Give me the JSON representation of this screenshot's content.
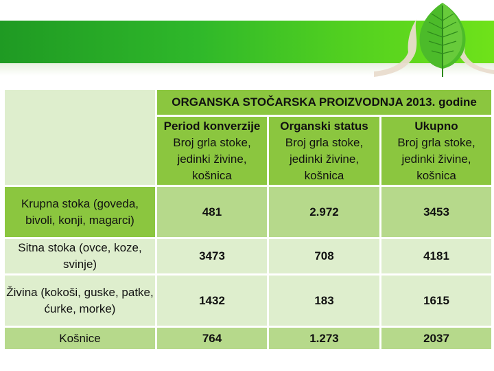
{
  "table": {
    "title": "ORGANSKA STOČARSKA PROIZVODNJA 2013. godine",
    "columns": [
      {
        "heading": "Period konverzije",
        "subheading": "Broj grla stoke, jedinki živine, košnica"
      },
      {
        "heading": "Organski status",
        "subheading": "Broj grla stoke, jedinki živine, košnica"
      },
      {
        "heading": "Ukupno",
        "subheading": "Broj grla stoke, jedinki živine, košnica"
      }
    ],
    "rows": [
      {
        "label": "Krupna stoka (goveda, bivoli, konji, magarci)",
        "values": [
          "481",
          "2.972",
          "3453"
        ]
      },
      {
        "label": "Sitna stoka (ovce, koze, svinje)",
        "values": [
          "3473",
          "708",
          "4181"
        ]
      },
      {
        "label": "Živina (kokoši, guske, patke, ćurke, morke)",
        "values": [
          "1432",
          "183",
          "1615"
        ]
      },
      {
        "label": "Košnice",
        "values": [
          "764",
          "1.273",
          "2037"
        ]
      }
    ]
  },
  "colors": {
    "banner": "#2fb82a",
    "cell_dark": "#8bc63f",
    "cell_mid": "#b6d98b",
    "cell_light": "#deeecd"
  }
}
